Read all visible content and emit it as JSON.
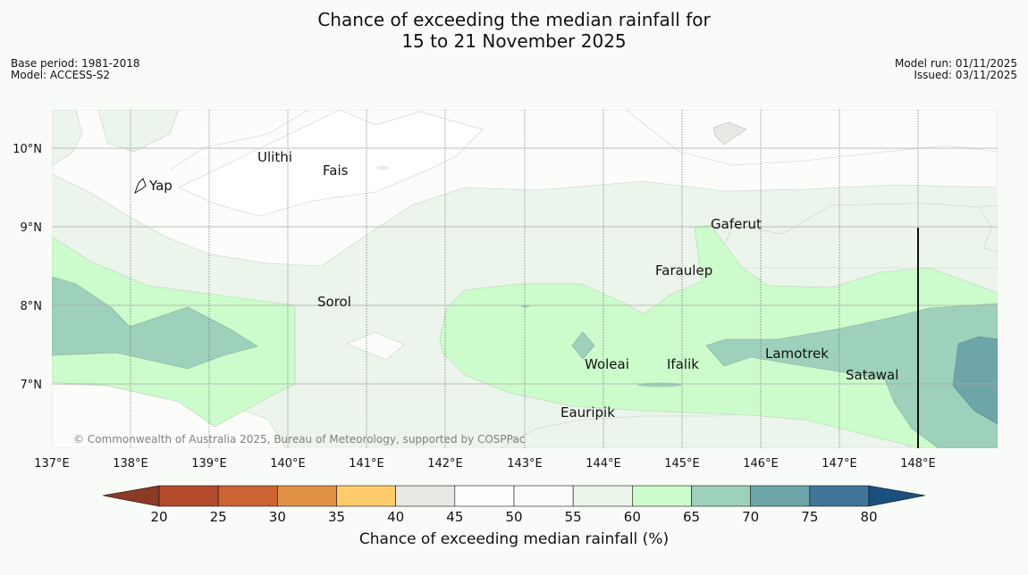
{
  "header": {
    "title_line1": "Chance of exceeding the median rainfall for",
    "title_line2": "15 to 21 November 2025",
    "base_period": "Base period: 1981-2018",
    "model": "Model: ACCESS-S2",
    "model_run": "Model run: 01/11/2025",
    "issued": "Issued: 03/11/2025"
  },
  "map": {
    "lat_labels": [
      "10°N",
      "9°N",
      "8°N",
      "7°N"
    ],
    "lon_labels": [
      "137°E",
      "138°E",
      "139°E",
      "140°E",
      "141°E",
      "142°E",
      "143°E",
      "144°E",
      "145°E",
      "146°E",
      "147°E",
      "148°E"
    ],
    "places": [
      "Yap",
      "Ulithi",
      "Fais",
      "Gaferut",
      "Faraulep",
      "Sorol",
      "Lamotrek",
      "Woleai",
      "Ifalik",
      "Satawal",
      "Eauripik"
    ],
    "copyright": "© Commonwealth of Australia 2025, Bureau of Meteorology, supported by COSPPac"
  },
  "legend": {
    "ticks": [
      "20",
      "25",
      "30",
      "35",
      "40",
      "45",
      "50",
      "55",
      "60",
      "65",
      "70",
      "75",
      "80"
    ],
    "label": "Chance of exceeding median rainfall (%)",
    "colors": [
      "#b34a2a",
      "#cc6333",
      "#e09146",
      "#fecc6a",
      "#e8e9e4",
      "#fdfdfb",
      "#fbfcfa",
      "#ebf5eb",
      "#ccfccb",
      "#9ed1bb",
      "#6ea5a8",
      "#3f7598"
    ],
    "low_color": "#8b3a24",
    "high_color": "#1a4f80"
  }
}
